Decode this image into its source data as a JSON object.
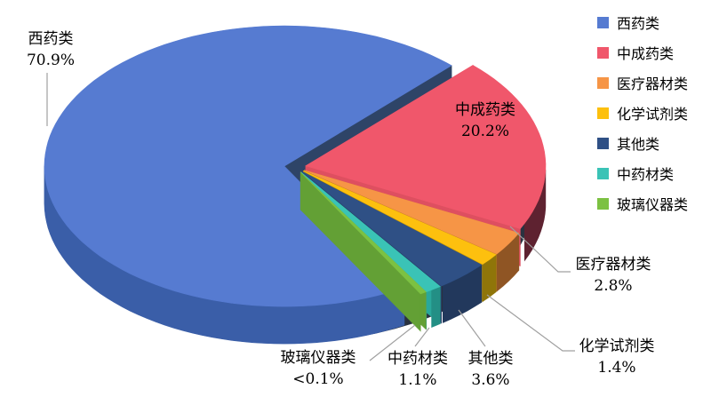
{
  "chart_data": {
    "type": "pie",
    "is_3d": true,
    "exploded": true,
    "title": "",
    "legend_position": "right",
    "unit": "%",
    "categories": [
      "西药类",
      "中成药类",
      "医疗器材类",
      "化学试剂类",
      "其他类",
      "中药材类",
      "玻璃仪器类"
    ],
    "values": [
      70.9,
      20.2,
      2.8,
      1.4,
      3.6,
      1.1,
      0.1
    ],
    "slices": [
      {
        "name": "西药类",
        "pct": 70.9,
        "pct_label": "70.9%",
        "color": "#567BD1",
        "side": "#3A5EA8",
        "cut": "#2E4467"
      },
      {
        "name": "中成药类",
        "pct": 20.2,
        "pct_label": "20.2%",
        "color": "#F0576B",
        "side": "#5E2230",
        "cut": "#DE4F60"
      },
      {
        "name": "医疗器材类",
        "pct": 2.8,
        "pct_label": "2.8%",
        "color": "#F69546",
        "side": "#8F5524",
        "cut": "#C7772F"
      },
      {
        "name": "化学试剂类",
        "pct": 1.4,
        "pct_label": "1.4%",
        "color": "#FDC00E",
        "side": "#8F7509",
        "cut": "#C79A0B"
      },
      {
        "name": "其他类",
        "pct": 3.6,
        "pct_label": "3.6%",
        "color": "#2F5085",
        "side": "#22385C",
        "cut": "#274068"
      },
      {
        "name": "中药材类",
        "pct": 1.1,
        "pct_label": "1.1%",
        "color": "#3AC3B6",
        "side": "#238F85",
        "cut": "#2AA89B"
      },
      {
        "name": "玻璃仪器类",
        "pct": 0.1,
        "pct_label": "<0.1%",
        "color": "#7CC142",
        "side": "#4F8030",
        "cut": "#63A035"
      }
    ],
    "leader_line_color": "#A0A0A0",
    "background_color": "#FFFFFF"
  }
}
